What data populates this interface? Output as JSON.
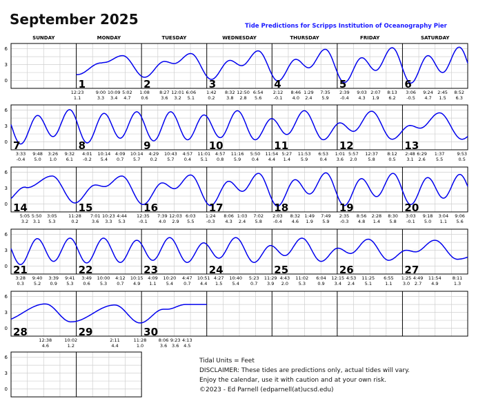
{
  "title": "September 2025",
  "subtitle": "Tide Predictions for Scripps Institution of Oceanography Pier",
  "weekdays": [
    "SUNDAY",
    "MONDAY",
    "TUESDAY",
    "WEDNESDAY",
    "THURSDAY",
    "FRIDAY",
    "SATURDAY"
  ],
  "y_axis_ticks": [
    "6",
    "3",
    "0"
  ],
  "curve_color": "#0000ee",
  "footer": {
    "units": "Tidal Units = Feet",
    "disclaimer": "DISCLAIMER: These tides are predictions only, actual tides will vary.",
    "enjoy": "Enjoy the calendar, use it with caution and at your own risk.",
    "copyright": "©2023 - Ed Parnell (edparnell(at)ucsd.edu)"
  },
  "days": [
    {
      "day": "1",
      "tides": [
        {
          "time": "12:23",
          "t24": "00:23",
          "height": "1.1"
        },
        {
          "time": "9:00",
          "t24": "09:00",
          "height": "3.3"
        },
        {
          "time": "10:09",
          "t24": "10:09",
          "height": "3.4"
        },
        {
          "time": "5:02",
          "t24": "17:02",
          "height": "4.7"
        }
      ]
    },
    {
      "day": "2",
      "tides": [
        {
          "time": "1:08",
          "t24": "01:08",
          "height": "0.6"
        },
        {
          "time": "8:27",
          "t24": "08:27",
          "height": "3.6"
        },
        {
          "time": "12:01",
          "t24": "12:01",
          "height": "3.2"
        },
        {
          "time": "6:06",
          "t24": "18:06",
          "height": "5.1"
        }
      ]
    },
    {
      "day": "3",
      "tides": [
        {
          "time": "1:42",
          "t24": "01:42",
          "height": "0.2"
        },
        {
          "time": "8:32",
          "t24": "08:32",
          "height": "3.8"
        },
        {
          "time": "12:50",
          "t24": "12:50",
          "height": "2.8"
        },
        {
          "time": "6:54",
          "t24": "18:54",
          "height": "5.6"
        }
      ]
    },
    {
      "day": "4",
      "tides": [
        {
          "time": "2:12",
          "t24": "02:12",
          "height": "-0.1"
        },
        {
          "time": "8:46",
          "t24": "08:46",
          "height": "4.0"
        },
        {
          "time": "1:29",
          "t24": "13:29",
          "height": "2.4"
        },
        {
          "time": "7:35",
          "t24": "19:35",
          "height": "5.9"
        }
      ]
    },
    {
      "day": "5",
      "tides": [
        {
          "time": "2:39",
          "t24": "02:39",
          "height": "-0.4"
        },
        {
          "time": "9:03",
          "t24": "09:03",
          "height": "4.3"
        },
        {
          "time": "2:07",
          "t24": "14:07",
          "height": "1.9"
        },
        {
          "time": "8:13",
          "t24": "20:13",
          "height": "6.2"
        }
      ]
    },
    {
      "day": "6",
      "tides": [
        {
          "time": "3:06",
          "t24": "03:06",
          "height": "-0.5"
        },
        {
          "time": "9:24",
          "t24": "09:24",
          "height": "4.7"
        },
        {
          "time": "2:45",
          "t24": "14:45",
          "height": "1.5"
        },
        {
          "time": "8:52",
          "t24": "20:52",
          "height": "6.3"
        }
      ]
    },
    {
      "day": "7",
      "tides": [
        {
          "time": "3:33",
          "t24": "03:33",
          "height": "-0.4"
        },
        {
          "time": "9:48",
          "t24": "09:48",
          "height": "5.0"
        },
        {
          "time": "3:26",
          "t24": "15:26",
          "height": "1.0"
        },
        {
          "time": "9:32",
          "t24": "21:32",
          "height": "6.1"
        }
      ]
    },
    {
      "day": "8",
      "tides": [
        {
          "time": "4:01",
          "t24": "04:01",
          "height": "-0.2"
        },
        {
          "time": "10:14",
          "t24": "10:14",
          "height": "5.4"
        },
        {
          "time": "4:09",
          "t24": "16:09",
          "height": "0.7"
        },
        {
          "time": "10:14",
          "t24": "22:14",
          "height": "5.7"
        }
      ]
    },
    {
      "day": "9",
      "tides": [
        {
          "time": "4:29",
          "t24": "04:29",
          "height": "0.2"
        },
        {
          "time": "10:43",
          "t24": "10:43",
          "height": "5.7"
        },
        {
          "time": "4:57",
          "t24": "16:57",
          "height": "0.4"
        },
        {
          "time": "11:01",
          "t24": "23:01",
          "height": "5.1"
        }
      ]
    },
    {
      "day": "10",
      "tides": [
        {
          "time": "4:57",
          "t24": "04:57",
          "height": "0.8"
        },
        {
          "time": "11:16",
          "t24": "11:16",
          "height": "5.9"
        },
        {
          "time": "5:50",
          "t24": "17:50",
          "height": "0.4"
        },
        {
          "time": "11:54",
          "t24": "23:54",
          "height": "4.4"
        }
      ]
    },
    {
      "day": "11",
      "tides": [
        {
          "time": "5:27",
          "t24": "05:27",
          "height": "1.4"
        },
        {
          "time": "11:53",
          "t24": "11:53",
          "height": "5.9"
        },
        {
          "time": "6:53",
          "t24": "18:53",
          "height": "0.4"
        }
      ]
    },
    {
      "day": "12",
      "tides": [
        {
          "time": "1:01",
          "t24": "01:01",
          "height": "3.6"
        },
        {
          "time": "5:57",
          "t24": "05:57",
          "height": "2.0"
        },
        {
          "time": "12:37",
          "t24": "12:37",
          "height": "5.8"
        },
        {
          "time": "8:12",
          "t24": "20:12",
          "height": "0.5"
        }
      ]
    },
    {
      "day": "13",
      "tides": [
        {
          "time": "2:48",
          "t24": "02:48",
          "height": "3.1"
        },
        {
          "time": "6:29",
          "t24": "06:29",
          "height": "2.6"
        },
        {
          "time": "1:37",
          "t24": "13:37",
          "height": "5.5"
        },
        {
          "time": "9:53",
          "t24": "21:53",
          "height": "0.5"
        }
      ]
    },
    {
      "day": "14",
      "tides": [
        {
          "time": "5:05",
          "t24": "05:05",
          "height": "3.2"
        },
        {
          "time": "5:50",
          "t24": "05:50",
          "height": "3.1"
        },
        {
          "time": "3:05",
          "t24": "15:05",
          "height": "5.3"
        },
        {
          "time": "11:28",
          "t24": "23:28",
          "height": "0.2"
        }
      ]
    },
    {
      "day": "15",
      "tides": [
        {
          "time": "7:01",
          "t24": "07:01",
          "height": "3.6"
        },
        {
          "time": "10:23",
          "t24": "10:23",
          "height": "3.3"
        },
        {
          "time": "4:44",
          "t24": "16:44",
          "height": "5.3"
        }
      ]
    },
    {
      "day": "16",
      "tides": [
        {
          "time": "12:35",
          "t24": "00:35",
          "height": "-0.1"
        },
        {
          "time": "7:39",
          "t24": "07:39",
          "height": "4.0"
        },
        {
          "time": "12:03",
          "t24": "12:03",
          "height": "2.9"
        },
        {
          "time": "6:03",
          "t24": "18:03",
          "height": "5.5"
        }
      ]
    },
    {
      "day": "17",
      "tides": [
        {
          "time": "1:24",
          "t24": "01:24",
          "height": "-0.3"
        },
        {
          "time": "8:06",
          "t24": "08:06",
          "height": "4.3"
        },
        {
          "time": "1:03",
          "t24": "13:03",
          "height": "2.4"
        },
        {
          "time": "7:02",
          "t24": "19:02",
          "height": "5.8"
        }
      ]
    },
    {
      "day": "18",
      "tides": [
        {
          "time": "2:03",
          "t24": "02:03",
          "height": "-0.4"
        },
        {
          "time": "8:32",
          "t24": "08:32",
          "height": "4.6"
        },
        {
          "time": "1:49",
          "t24": "13:49",
          "height": "1.9"
        },
        {
          "time": "7:49",
          "t24": "19:49",
          "height": "5.9"
        }
      ]
    },
    {
      "day": "19",
      "tides": [
        {
          "time": "2:35",
          "t24": "02:35",
          "height": "-0.3"
        },
        {
          "time": "8:56",
          "t24": "08:56",
          "height": "4.8"
        },
        {
          "time": "2:28",
          "t24": "14:28",
          "height": "1.4"
        },
        {
          "time": "8:30",
          "t24": "20:30",
          "height": "5.8"
        }
      ]
    },
    {
      "day": "20",
      "tides": [
        {
          "time": "3:03",
          "t24": "03:03",
          "height": "-0.1"
        },
        {
          "time": "9:18",
          "t24": "09:18",
          "height": "5.0"
        },
        {
          "time": "3:04",
          "t24": "15:04",
          "height": "1.1"
        },
        {
          "time": "9:06",
          "t24": "21:06",
          "height": "5.6"
        }
      ]
    },
    {
      "day": "21",
      "tides": [
        {
          "time": "3:28",
          "t24": "03:28",
          "height": "0.3"
        },
        {
          "time": "9:40",
          "t24": "09:40",
          "height": "5.2"
        },
        {
          "time": "3:39",
          "t24": "15:39",
          "height": "0.9"
        },
        {
          "time": "9:41",
          "t24": "21:41",
          "height": "5.3"
        }
      ]
    },
    {
      "day": "22",
      "tides": [
        {
          "time": "3:49",
          "t24": "03:49",
          "height": "0.6"
        },
        {
          "time": "10:00",
          "t24": "10:00",
          "height": "5.3"
        },
        {
          "time": "4:12",
          "t24": "16:12",
          "height": "0.7"
        },
        {
          "time": "10:15",
          "t24": "22:15",
          "height": "4.9"
        }
      ]
    },
    {
      "day": "23",
      "tides": [
        {
          "time": "4:09",
          "t24": "04:09",
          "height": "1.1"
        },
        {
          "time": "10:20",
          "t24": "10:20",
          "height": "5.4"
        },
        {
          "time": "4:47",
          "t24": "16:47",
          "height": "0.7"
        },
        {
          "time": "10:51",
          "t24": "22:51",
          "height": "4.4"
        }
      ]
    },
    {
      "day": "24",
      "tides": [
        {
          "time": "4:27",
          "t24": "04:27",
          "height": "1.5"
        },
        {
          "time": "10:40",
          "t24": "10:40",
          "height": "5.4"
        },
        {
          "time": "5:23",
          "t24": "17:23",
          "height": "0.7"
        },
        {
          "time": "11:29",
          "t24": "23:29",
          "height": "3.9"
        }
      ]
    },
    {
      "day": "25",
      "tides": [
        {
          "time": "4:43",
          "t24": "04:43",
          "height": "2.0"
        },
        {
          "time": "11:02",
          "t24": "11:02",
          "height": "5.3"
        },
        {
          "time": "6:04",
          "t24": "18:04",
          "height": "0.9"
        }
      ]
    },
    {
      "day": "26",
      "tides": [
        {
          "time": "12:15",
          "t24": "00:15",
          "height": "3.4"
        },
        {
          "time": "4:53",
          "t24": "04:53",
          "height": "2.4"
        },
        {
          "time": "11:25",
          "t24": "11:25",
          "height": "5.1"
        },
        {
          "time": "6:55",
          "t24": "18:55",
          "height": "1.1"
        }
      ]
    },
    {
      "day": "27",
      "tides": [
        {
          "time": "1:25",
          "t24": "01:25",
          "height": "3.0"
        },
        {
          "time": "4:49",
          "t24": "04:49",
          "height": "2.7"
        },
        {
          "time": "11:54",
          "t24": "11:54",
          "height": "4.9"
        },
        {
          "time": "8:11",
          "t24": "20:11",
          "height": "1.3"
        }
      ]
    },
    {
      "day": "28",
      "tides": [
        {
          "time": "12:38",
          "t24": "12:38",
          "height": "4.6"
        },
        {
          "time": "10:02",
          "t24": "22:02",
          "height": "1.2"
        }
      ]
    },
    {
      "day": "29",
      "tides": [
        {
          "time": "2:11",
          "t24": "14:11",
          "height": "4.4"
        },
        {
          "time": "11:28",
          "t24": "23:28",
          "height": "1.0"
        }
      ]
    },
    {
      "day": "30",
      "tides": [
        {
          "time": "8:06",
          "t24": "08:06",
          "height": "3.6"
        },
        {
          "time": "9:23",
          "t24": "09:23",
          "height": "3.6"
        },
        {
          "time": "4:13",
          "t24": "16:13",
          "height": "4.5"
        }
      ]
    }
  ]
}
